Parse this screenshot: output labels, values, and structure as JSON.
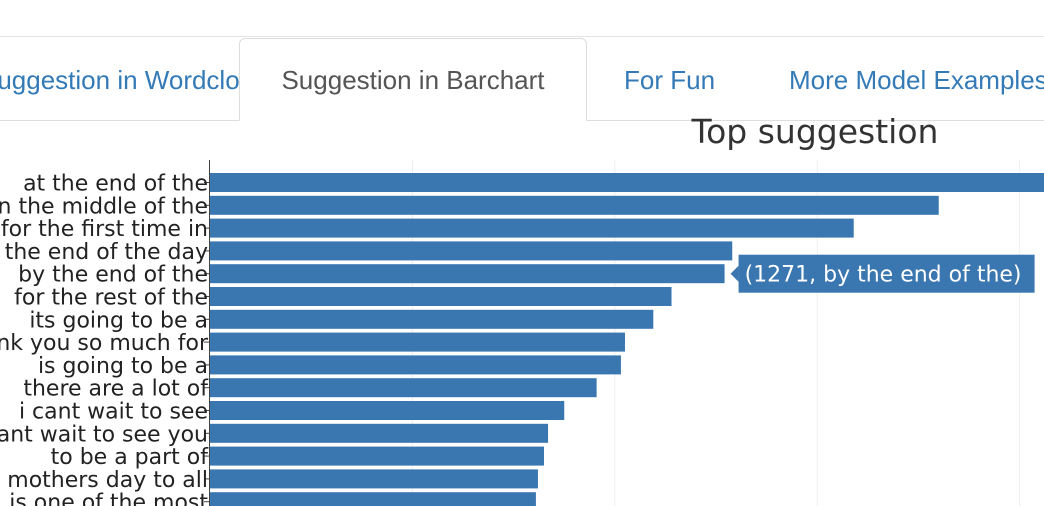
{
  "tabs": [
    {
      "label": "Suggestion in Wordcloud",
      "active": false
    },
    {
      "label": "Suggestion in Barchart",
      "active": true
    },
    {
      "label": "For Fun",
      "active": false
    },
    {
      "label": "More Model Examples",
      "active": false
    }
  ],
  "chart_data": {
    "type": "bar",
    "orientation": "horizontal",
    "title": "Top suggestion",
    "xlabel": "",
    "ylabel": "",
    "grid": true,
    "xlim": [
      0,
      2060
    ],
    "color": "#3a76b0",
    "categories": [
      "at the end of the",
      "in the middle of the",
      "for the first time in",
      "at the end of the day",
      "by the end of the",
      "for the rest of the",
      "its going to be a",
      "thank you so much for",
      "is going to be a",
      "there are a lot of",
      "i cant wait to see",
      "cant wait to see you",
      "to be a part of",
      "happy mothers day to all",
      "is one of the most"
    ],
    "values": [
      2060,
      1800,
      1590,
      1290,
      1271,
      1140,
      1095,
      1025,
      1015,
      955,
      875,
      835,
      825,
      810,
      805
    ],
    "tooltip": {
      "text": "(1271, by the end of the)",
      "index": 4
    }
  }
}
